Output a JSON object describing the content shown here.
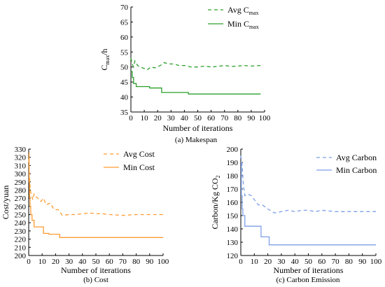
{
  "chart_data": [
    {
      "id": "makespan",
      "type": "line",
      "caption": "(a) Makespan",
      "xlabel": "Number of iterations",
      "ylabel": "C",
      "ylabel_sub": "max",
      "ylabel_suffix": "/h",
      "xlim": [
        0,
        100
      ],
      "ylim": [
        35,
        70
      ],
      "xticks": [
        0,
        10,
        20,
        30,
        40,
        50,
        60,
        70,
        80,
        90,
        100
      ],
      "yticks": [
        35,
        40,
        45,
        50,
        55,
        60,
        65,
        70
      ],
      "legend_position": "top-right",
      "color": "#2ca02c",
      "series": [
        {
          "name": "Avg C",
          "name_sub": "max",
          "dash": "dashed",
          "x": [
            0,
            1,
            2,
            3,
            5,
            7,
            10,
            12,
            15,
            18,
            22,
            25,
            28,
            32,
            36,
            40,
            45,
            50,
            55,
            60,
            65,
            70,
            75,
            80,
            85,
            90,
            97
          ],
          "y": [
            53,
            51,
            50,
            52,
            50.5,
            50,
            49.5,
            49,
            50,
            49.7,
            50.5,
            51.5,
            51,
            51,
            50.5,
            50.5,
            50,
            50,
            50.3,
            50,
            50.2,
            50.5,
            50.2,
            50.3,
            50.5,
            50.3,
            50.5
          ]
        },
        {
          "name": "Min C",
          "name_sub": "max",
          "dash": "solid",
          "x": [
            0,
            1,
            1,
            2,
            2,
            4,
            4,
            14,
            14,
            23,
            23,
            43,
            43,
            97
          ],
          "y": [
            48.5,
            48.5,
            46.5,
            46.5,
            44.5,
            44.5,
            43.5,
            43.5,
            43,
            43,
            41.5,
            41.5,
            41,
            41
          ]
        }
      ]
    },
    {
      "id": "cost",
      "type": "line",
      "caption": "(b) Cost",
      "xlabel": "Number of iterations",
      "ylabel": "Cost/yuan",
      "xlim": [
        0,
        100
      ],
      "ylim": [
        200,
        330
      ],
      "xticks": [
        0,
        10,
        20,
        30,
        40,
        50,
        60,
        70,
        80,
        90,
        100
      ],
      "yticks": [
        200,
        210,
        220,
        230,
        240,
        250,
        260,
        270,
        280,
        290,
        300,
        310,
        320,
        330
      ],
      "legend_position": "top-right",
      "color": "#ff9c33",
      "series": [
        {
          "name": "Avg Cost",
          "dash": "dashed",
          "x": [
            0,
            0.5,
            1,
            1.5,
            2,
            3,
            4,
            5,
            7,
            9,
            11,
            13,
            16,
            19,
            22,
            25,
            30,
            35,
            40,
            45,
            50,
            55,
            60,
            70,
            80,
            90,
            100
          ],
          "y": [
            318,
            300,
            285,
            277,
            275,
            268,
            275,
            272,
            270,
            266,
            270,
            262,
            264,
            256,
            256,
            249,
            250,
            250,
            251,
            252,
            251,
            251,
            250,
            249,
            250,
            250,
            250
          ]
        },
        {
          "name": "Min Cost",
          "dash": "solid",
          "x": [
            0,
            0.3,
            0.3,
            0.6,
            0.6,
            1,
            1,
            1.5,
            1.5,
            2.5,
            2.5,
            4,
            4,
            11,
            11,
            15,
            15,
            23,
            23,
            100
          ],
          "y": [
            325,
            325,
            290,
            290,
            272,
            272,
            260,
            260,
            250,
            250,
            243,
            243,
            235,
            235,
            227,
            227,
            226,
            226,
            222,
            222
          ]
        }
      ]
    },
    {
      "id": "carbon",
      "type": "line",
      "caption": "(c) Carbon Emission",
      "xlabel": "Number of iterations",
      "ylabel": "Carbon/Kg CO",
      "ylabel_sub": "2",
      "xlim": [
        0,
        100
      ],
      "ylim": [
        120,
        200
      ],
      "xticks": [
        0,
        10,
        20,
        30,
        40,
        50,
        60,
        70,
        80,
        90,
        100
      ],
      "yticks": [
        120,
        130,
        140,
        150,
        160,
        170,
        180,
        190,
        200
      ],
      "legend_position": "top-right",
      "color": "#7d9fe8",
      "series": [
        {
          "name": "Avg Carbon",
          "dash": "dashed",
          "x": [
            0,
            1,
            2,
            3,
            5,
            8,
            10,
            13,
            16,
            20,
            25,
            30,
            35,
            40,
            45,
            50,
            55,
            60,
            70,
            80,
            90,
            100
          ],
          "y": [
            195,
            188,
            172,
            165,
            166,
            165,
            162,
            158,
            158,
            155,
            152,
            153,
            154,
            153,
            154,
            154,
            153,
            154,
            153,
            153,
            153,
            153
          ],
          "x_extra": []
        },
        {
          "name": "Min Carbon",
          "dash": "solid",
          "x": [
            0,
            0.4,
            0.4,
            1,
            1,
            1.5,
            1.5,
            3,
            3,
            15,
            15,
            21,
            21,
            100
          ],
          "y": [
            190,
            190,
            165,
            165,
            155,
            155,
            150,
            150,
            142,
            142,
            134,
            134,
            128,
            128
          ]
        }
      ]
    }
  ]
}
